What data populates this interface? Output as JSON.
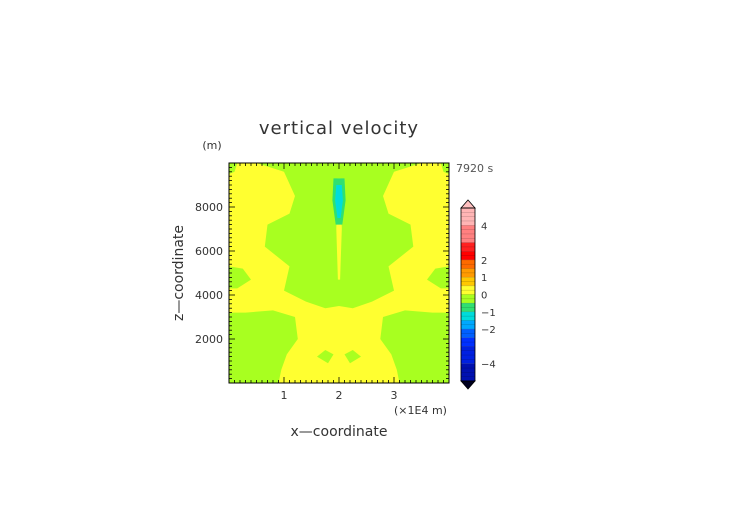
{
  "chart_data": {
    "type": "heatmap",
    "title": "vertical velocity",
    "time_label": "7920 s",
    "xlabel": "x—coordinate",
    "ylabel": "z—coordinate",
    "x_unit": "(×1E4 m)",
    "y_unit": "(m)",
    "xlim": [
      0,
      4
    ],
    "ylim": [
      0,
      10000
    ],
    "x_ticks": [
      "1",
      "2",
      "3"
    ],
    "x_tick_values": [
      1,
      2,
      3
    ],
    "y_ticks": [
      "2000",
      "4000",
      "6000",
      "8000"
    ],
    "y_tick_values": [
      2000,
      4000,
      6000,
      8000
    ],
    "colorbar": {
      "labels": [
        "4",
        "2",
        "1",
        "0",
        "−1",
        "−2",
        "−4"
      ],
      "label_values": [
        4,
        2,
        1,
        0,
        -1,
        -2,
        -4
      ],
      "levels": [
        5,
        4,
        3,
        2.5,
        2,
        1.5,
        1,
        0.5,
        0,
        -0.5,
        -1,
        -1.5,
        -2,
        -2.5,
        -3,
        -4,
        -5
      ],
      "colors": [
        "#ffb5b5",
        "#ff8080",
        "#ff2020",
        "#ff0000",
        "#ff6a00",
        "#ff9a00",
        "#ffc800",
        "#ffff30",
        "#a8ff20",
        "#30e070",
        "#00dcdc",
        "#00a8ff",
        "#0060ff",
        "#0030ff",
        "#0020e0",
        "#0010b0"
      ],
      "over_color": "#ffc0c0",
      "under_color": "#000020"
    },
    "field": {
      "background_level": "0 to 0.5",
      "background_color": "#ffff30",
      "regions": [
        {
          "range": "-0.5 to 0",
          "color": "#a8ff20",
          "outline": [
            [
              0.5,
              10000
            ],
            [
              1.0,
              9600
            ],
            [
              1.2,
              8500
            ],
            [
              1.1,
              7700
            ],
            [
              0.7,
              7200
            ],
            [
              0.65,
              6200
            ],
            [
              1.1,
              5300
            ],
            [
              1.0,
              4200
            ],
            [
              1.4,
              3700
            ],
            [
              1.75,
              3400
            ],
            [
              2.0,
              3500
            ],
            [
              2.25,
              3400
            ],
            [
              2.6,
              3700
            ],
            [
              3.0,
              4200
            ],
            [
              2.9,
              5300
            ],
            [
              3.35,
              6200
            ],
            [
              3.3,
              7200
            ],
            [
              2.9,
              7700
            ],
            [
              2.8,
              8500
            ],
            [
              3.0,
              9600
            ],
            [
              3.5,
              10000
            ]
          ]
        },
        {
          "range": "-0.5 to 0",
          "color": "#a8ff20",
          "outline": [
            [
              0,
              3200
            ],
            [
              0.3,
              3200
            ],
            [
              0.8,
              3300
            ],
            [
              1.2,
              3000
            ],
            [
              1.25,
              2000
            ],
            [
              1.05,
              1300
            ],
            [
              0.95,
              600
            ],
            [
              0.9,
              0
            ],
            [
              0,
              0
            ]
          ]
        },
        {
          "range": "-0.5 to 0",
          "color": "#a8ff20",
          "outline": [
            [
              4,
              3200
            ],
            [
              3.7,
              3200
            ],
            [
              3.2,
              3300
            ],
            [
              2.8,
              3000
            ],
            [
              2.75,
              2000
            ],
            [
              2.95,
              1300
            ],
            [
              3.05,
              600
            ],
            [
              3.1,
              0
            ],
            [
              4,
              0
            ]
          ]
        },
        {
          "range": "-0.5 to 0",
          "color": "#a8ff20",
          "outline": [
            [
              0,
              5300
            ],
            [
              0.25,
              5200
            ],
            [
              0.4,
              4700
            ],
            [
              0.15,
              4300
            ],
            [
              0,
              4300
            ]
          ]
        },
        {
          "range": "-0.5 to 0",
          "color": "#a8ff20",
          "outline": [
            [
              4,
              5300
            ],
            [
              3.75,
              5200
            ],
            [
              3.6,
              4700
            ],
            [
              3.85,
              4300
            ],
            [
              4,
              4300
            ]
          ]
        },
        {
          "range": "-0.5 to 0",
          "color": "#a8ff20",
          "outline": [
            [
              0,
              10000
            ],
            [
              0.15,
              10000
            ],
            [
              0.1,
              9600
            ],
            [
              0,
              9500
            ]
          ]
        },
        {
          "range": "-0.5 to 0",
          "color": "#a8ff20",
          "outline": [
            [
              4,
              10000
            ],
            [
              3.85,
              10000
            ],
            [
              3.9,
              9600
            ],
            [
              4,
              9500
            ]
          ]
        },
        {
          "range": "-0.5 to 0",
          "color": "#a8ff20",
          "outline": [
            [
              1.6,
              1200
            ],
            [
              1.75,
              1500
            ],
            [
              1.9,
              1300
            ],
            [
              1.8,
              900
            ]
          ]
        },
        {
          "range": "-0.5 to 0",
          "color": "#a8ff20",
          "outline": [
            [
              2.4,
              1200
            ],
            [
              2.25,
              1500
            ],
            [
              2.1,
              1300
            ],
            [
              2.2,
              900
            ]
          ]
        },
        {
          "range": "0 to 0.5",
          "color": "#ffff30",
          "outline": [
            [
              1.97,
              9300
            ],
            [
              2.03,
              9300
            ],
            [
              2.05,
              7000
            ],
            [
              2.02,
              4700
            ],
            [
              1.98,
              4700
            ],
            [
              1.95,
              7000
            ]
          ]
        },
        {
          "range": "-1 to -0.5",
          "color": "#30e070",
          "outline": [
            [
              1.9,
              9300
            ],
            [
              2.1,
              9300
            ],
            [
              2.12,
              8300
            ],
            [
              2.06,
              7200
            ],
            [
              1.94,
              7200
            ],
            [
              1.88,
              8300
            ]
          ]
        },
        {
          "range": "-1.5 to -1",
          "color": "#00dcdc",
          "outline": [
            [
              1.95,
              9000
            ],
            [
              2.05,
              9000
            ],
            [
              2.07,
              8300
            ],
            [
              2.03,
              7500
            ],
            [
              1.97,
              7500
            ],
            [
              1.93,
              8300
            ]
          ]
        }
      ]
    }
  }
}
